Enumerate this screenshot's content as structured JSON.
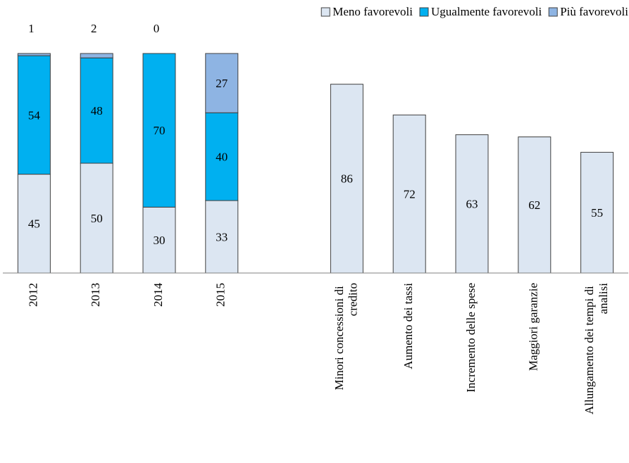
{
  "chart_data": {
    "type": "bar",
    "stacked": true,
    "categories": [
      "2012",
      "2013",
      "2014",
      "2015",
      null,
      "Minori concessioni di credito",
      "Aumento dei tassi",
      "Incremento delle spese",
      "Maggiori garanzie",
      "Allungamento dei tempi di analisi"
    ],
    "series": [
      {
        "name": "Meno favorevoli",
        "color": "#dce6f2",
        "values": [
          45,
          50,
          30,
          33,
          null,
          86,
          72,
          63,
          62,
          55
        ]
      },
      {
        "name": "Ugualmente favorevoli",
        "color": "#00b0f0",
        "values": [
          54,
          48,
          70,
          40,
          null,
          null,
          null,
          null,
          null,
          null
        ]
      },
      {
        "name": "Più favorevoli",
        "color": "#8eb4e3",
        "values": [
          1,
          2,
          0,
          27,
          null,
          null,
          null,
          null,
          null,
          null
        ]
      }
    ],
    "ylim": [
      0,
      100
    ],
    "legend": "top-right"
  }
}
